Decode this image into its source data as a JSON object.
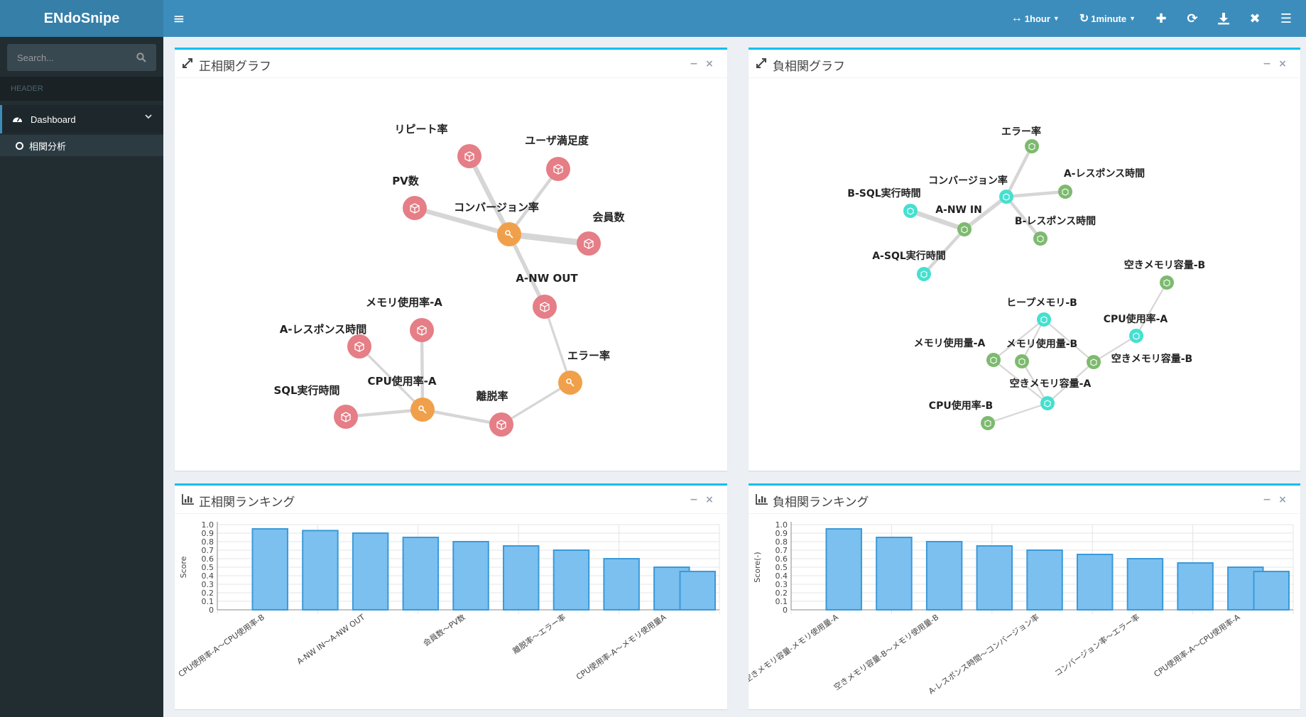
{
  "app": {
    "title": "ENdoSnipe"
  },
  "toolbar": {
    "range_label": "1hour",
    "refresh_label": "1minute",
    "icons": [
      "plus-icon",
      "refresh-icon",
      "download-icon",
      "close-icon",
      "menu-icon"
    ]
  },
  "sidebar": {
    "search_placeholder": "Search...",
    "header": "HEADER",
    "items": [
      {
        "label": "Dashboard",
        "icon": "dashboard-icon"
      }
    ],
    "subitems": [
      {
        "label": "相関分析"
      }
    ]
  },
  "panels": {
    "pos_graph_title": "正相関グラフ",
    "neg_graph_title": "負相関グラフ",
    "pos_rank_title": "正相関ランキング",
    "neg_rank_title": "負相関ランキング",
    "minimize": "−",
    "close": "×"
  },
  "pos_graph": {
    "colors": {
      "node": "#e57e86",
      "hub": "#f0a04b",
      "edge": "#d6d6d6"
    },
    "nodes": [
      {
        "id": "repeat",
        "label": "リピート率",
        "type": "node"
      },
      {
        "id": "sat",
        "label": "ユーザ満足度",
        "type": "node"
      },
      {
        "id": "pv",
        "label": "PV数",
        "type": "node"
      },
      {
        "id": "conv",
        "label": "コンバージョン率",
        "type": "hub"
      },
      {
        "id": "member",
        "label": "会員数",
        "type": "node"
      },
      {
        "id": "nwout",
        "label": "A-NW OUT",
        "type": "node"
      },
      {
        "id": "memA",
        "label": "メモリ使用率-A",
        "type": "node"
      },
      {
        "id": "respA",
        "label": "A-レスポンス時間",
        "type": "node"
      },
      {
        "id": "err",
        "label": "エラー率",
        "type": "hub"
      },
      {
        "id": "cpuA",
        "label": "CPU使用率-A",
        "type": "hub"
      },
      {
        "id": "sql",
        "label": "SQL実行時間",
        "type": "node"
      },
      {
        "id": "leave",
        "label": "離脱率",
        "type": "node"
      }
    ],
    "edges": [
      {
        "source": "conv",
        "target": "repeat",
        "weight": 3
      },
      {
        "source": "conv",
        "target": "sat",
        "weight": 2
      },
      {
        "source": "conv",
        "target": "pv",
        "weight": 3
      },
      {
        "source": "conv",
        "target": "member",
        "weight": 4
      },
      {
        "source": "conv",
        "target": "nwout",
        "weight": 2.5
      },
      {
        "source": "nwout",
        "target": "err",
        "weight": 1.5
      },
      {
        "source": "err",
        "target": "leave",
        "weight": 1.5
      },
      {
        "source": "leave",
        "target": "cpuA",
        "weight": 2
      },
      {
        "source": "cpuA",
        "target": "memA",
        "weight": 2
      },
      {
        "source": "cpuA",
        "target": "respA",
        "weight": 1.5
      },
      {
        "source": "cpuA",
        "target": "sql",
        "weight": 2
      }
    ]
  },
  "neg_graph": {
    "colors": {
      "node": "#7dba6f",
      "hub": "#45e0cf",
      "edge": "#d6d6d6"
    },
    "nodes": [
      {
        "id": "err",
        "label": "エラー率",
        "type": "node"
      },
      {
        "id": "conv",
        "label": "コンバージョン率",
        "type": "hub"
      },
      {
        "id": "respA",
        "label": "A-レスポンス時間",
        "type": "node"
      },
      {
        "id": "bsql",
        "label": "B-SQL実行時間",
        "type": "hub"
      },
      {
        "id": "nwin",
        "label": "A-NW IN",
        "type": "node"
      },
      {
        "id": "respB",
        "label": "B-レスポンス時間",
        "type": "node"
      },
      {
        "id": "asql",
        "label": "A-SQL実行時間",
        "type": "hub"
      },
      {
        "id": "freeB1",
        "label": "空きメモリ容量-B",
        "type": "node"
      },
      {
        "id": "heapB",
        "label": "ヒープメモリ-B",
        "type": "hub"
      },
      {
        "id": "cpuA",
        "label": "CPU使用率-A",
        "type": "hub"
      },
      {
        "id": "memA",
        "label": "メモリ使用量-A",
        "type": "node"
      },
      {
        "id": "memB",
        "label": "メモリ使用量-B",
        "type": "node"
      },
      {
        "id": "freeB2",
        "label": "空きメモリ容量-B",
        "type": "node"
      },
      {
        "id": "freeA",
        "label": "空きメモリ容量-A",
        "type": "hub"
      },
      {
        "id": "cpuB",
        "label": "CPU使用率-B",
        "type": "node"
      }
    ],
    "edges": [
      {
        "source": "conv",
        "target": "err",
        "weight": 2
      },
      {
        "source": "conv",
        "target": "respA",
        "weight": 2
      },
      {
        "source": "conv",
        "target": "nwin",
        "weight": 2.5
      },
      {
        "source": "conv",
        "target": "respB",
        "weight": 2
      },
      {
        "source": "nwin",
        "target": "bsql",
        "weight": 3
      },
      {
        "source": "nwin",
        "target": "asql",
        "weight": 2
      },
      {
        "source": "freeB1",
        "target": "cpuA",
        "weight": 1
      },
      {
        "source": "cpuA",
        "target": "freeB2",
        "weight": 1
      },
      {
        "source": "heapB",
        "target": "memA",
        "weight": 1
      },
      {
        "source": "heapB",
        "target": "memB",
        "weight": 1
      },
      {
        "source": "heapB",
        "target": "freeB2",
        "weight": 1
      },
      {
        "source": "memA",
        "target": "freeA",
        "weight": 1
      },
      {
        "source": "memB",
        "target": "freeA",
        "weight": 1
      },
      {
        "source": "freeB2",
        "target": "freeA",
        "weight": 1
      },
      {
        "source": "freeA",
        "target": "cpuB",
        "weight": 1
      }
    ]
  },
  "chart_data": [
    {
      "type": "bar",
      "title": "正相関ランキング",
      "ylabel": "Score",
      "xlabel": "",
      "ylim": [
        0,
        1.0
      ],
      "yticks": [
        "0",
        "0.1",
        "0.2",
        "0.3",
        "0.4",
        "0.5",
        "0.6",
        "0.7",
        "0.8",
        "0.9",
        "1.0"
      ],
      "grid": true,
      "color": "#7cc0f0",
      "categories": [
        "CPU使用率-A～CPU使用率-B",
        "",
        "A-NW IN～A-NW OUT",
        "",
        "会員数～PV数",
        "",
        "離脱率～エラー率",
        "",
        "CPU使用率-A～メモリ使用量A",
        ""
      ],
      "values": [
        0.95,
        0.93,
        0.9,
        0.85,
        0.8,
        0.75,
        0.7,
        0.6,
        0.5,
        0.45
      ]
    },
    {
      "type": "bar",
      "title": "負相関ランキング",
      "ylabel": "Score(-)",
      "xlabel": "",
      "ylim": [
        0,
        1.0
      ],
      "yticks": [
        "0",
        "0.1",
        "0.2",
        "0.3",
        "0.4",
        "0.5",
        "0.6",
        "0.7",
        "0.8",
        "0.9",
        "1.0"
      ],
      "grid": true,
      "color": "#7cc0f0",
      "categories": [
        "空きメモリ容量-メモリ使用量-A",
        "",
        "空きメモリ容量-B～メモリ使用量-B",
        "",
        "A-レスポンス時間～コンバージョン率",
        "",
        "コンバージョン率～エラー率",
        "",
        "CPU使用率-A～CPU使用率-A",
        ""
      ],
      "values": [
        0.95,
        0.85,
        0.8,
        0.75,
        0.7,
        0.65,
        0.6,
        0.55,
        0.5,
        0.45
      ]
    }
  ]
}
